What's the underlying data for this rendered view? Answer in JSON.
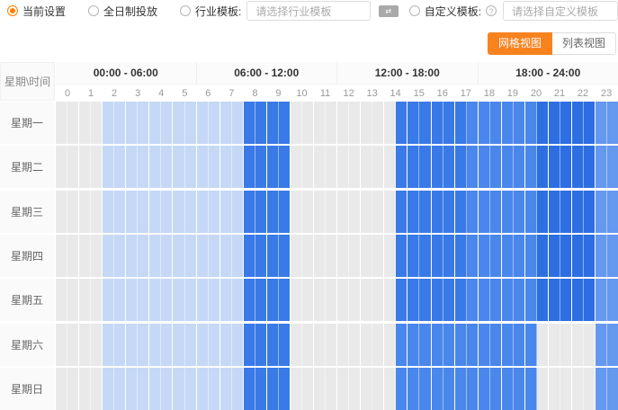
{
  "toolbar": {
    "radio_current": {
      "label": "当前设置",
      "selected": true
    },
    "radio_allday": {
      "label": "全日制投放",
      "selected": false
    },
    "radio_industry": {
      "label": "行业模板:",
      "selected": false
    },
    "industry_select": {
      "placeholder": "请选择行业模板"
    },
    "badge_icon": "template-badge",
    "radio_custom": {
      "label": "自定义模板:",
      "selected": false
    },
    "help_icon": "?",
    "custom_select": {
      "placeholder": "请选择自定义模板"
    },
    "accent_color": "#f7821e",
    "radio_checked_color": "#ff8000"
  },
  "view_toggle": {
    "grid_label": "网格视图",
    "list_label": "列表视图",
    "active": "grid"
  },
  "grid": {
    "corner_label": "星期\\时间",
    "time_groups": [
      "00:00 - 06:00",
      "06:00 - 12:00",
      "12:00 - 18:00",
      "18:00 - 24:00"
    ],
    "hours": [
      0,
      1,
      2,
      3,
      4,
      5,
      6,
      7,
      8,
      9,
      10,
      11,
      12,
      13,
      14,
      15,
      16,
      17,
      18,
      19,
      20,
      21,
      22,
      23
    ],
    "level_colors": {
      "off": "#e9e9e9",
      "light": "#c5d8f6",
      "mid": "#4a87ec",
      "middark": "#3a7ae8",
      "dark": "#2d6fe3",
      "midlight": "#6598ef"
    },
    "days": [
      {
        "label": "星期一",
        "segments": [
          {
            "from": "00:00",
            "to": "02:00",
            "level": "off"
          },
          {
            "from": "02:00",
            "to": "08:00",
            "level": "light"
          },
          {
            "from": "08:00",
            "to": "10:00",
            "level": "middark"
          },
          {
            "from": "10:00",
            "to": "14:30",
            "level": "off"
          },
          {
            "from": "14:30",
            "to": "17:30",
            "level": "middark"
          },
          {
            "from": "17:30",
            "to": "20:30",
            "level": "mid"
          },
          {
            "from": "20:30",
            "to": "23:00",
            "level": "dark"
          },
          {
            "from": "23:00",
            "to": "24:00",
            "level": "midlight"
          }
        ]
      },
      {
        "label": "星期二",
        "segments": [
          {
            "from": "00:00",
            "to": "02:00",
            "level": "off"
          },
          {
            "from": "02:00",
            "to": "08:00",
            "level": "light"
          },
          {
            "from": "08:00",
            "to": "10:00",
            "level": "middark"
          },
          {
            "from": "10:00",
            "to": "14:30",
            "level": "off"
          },
          {
            "from": "14:30",
            "to": "17:30",
            "level": "middark"
          },
          {
            "from": "17:30",
            "to": "20:30",
            "level": "mid"
          },
          {
            "from": "20:30",
            "to": "23:00",
            "level": "dark"
          },
          {
            "from": "23:00",
            "to": "24:00",
            "level": "midlight"
          }
        ]
      },
      {
        "label": "星期三",
        "segments": [
          {
            "from": "00:00",
            "to": "02:00",
            "level": "off"
          },
          {
            "from": "02:00",
            "to": "08:00",
            "level": "light"
          },
          {
            "from": "08:00",
            "to": "10:00",
            "level": "middark"
          },
          {
            "from": "10:00",
            "to": "14:30",
            "level": "off"
          },
          {
            "from": "14:30",
            "to": "17:30",
            "level": "middark"
          },
          {
            "from": "17:30",
            "to": "20:30",
            "level": "mid"
          },
          {
            "from": "20:30",
            "to": "23:00",
            "level": "dark"
          },
          {
            "from": "23:00",
            "to": "24:00",
            "level": "midlight"
          }
        ]
      },
      {
        "label": "星期四",
        "segments": [
          {
            "from": "00:00",
            "to": "02:00",
            "level": "off"
          },
          {
            "from": "02:00",
            "to": "08:00",
            "level": "light"
          },
          {
            "from": "08:00",
            "to": "10:00",
            "level": "middark"
          },
          {
            "from": "10:00",
            "to": "14:30",
            "level": "off"
          },
          {
            "from": "14:30",
            "to": "17:30",
            "level": "middark"
          },
          {
            "from": "17:30",
            "to": "20:30",
            "level": "mid"
          },
          {
            "from": "20:30",
            "to": "23:00",
            "level": "dark"
          },
          {
            "from": "23:00",
            "to": "24:00",
            "level": "midlight"
          }
        ]
      },
      {
        "label": "星期五",
        "segments": [
          {
            "from": "00:00",
            "to": "02:00",
            "level": "off"
          },
          {
            "from": "02:00",
            "to": "08:00",
            "level": "light"
          },
          {
            "from": "08:00",
            "to": "10:00",
            "level": "middark"
          },
          {
            "from": "10:00",
            "to": "14:30",
            "level": "off"
          },
          {
            "from": "14:30",
            "to": "17:30",
            "level": "middark"
          },
          {
            "from": "17:30",
            "to": "20:30",
            "level": "mid"
          },
          {
            "from": "20:30",
            "to": "23:00",
            "level": "dark"
          },
          {
            "from": "23:00",
            "to": "24:00",
            "level": "midlight"
          }
        ]
      },
      {
        "label": "星期六",
        "segments": [
          {
            "from": "00:00",
            "to": "02:00",
            "level": "off"
          },
          {
            "from": "02:00",
            "to": "08:00",
            "level": "light"
          },
          {
            "from": "08:00",
            "to": "10:00",
            "level": "middark"
          },
          {
            "from": "10:00",
            "to": "14:30",
            "level": "off"
          },
          {
            "from": "14:30",
            "to": "20:30",
            "level": "mid"
          },
          {
            "from": "20:30",
            "to": "23:00",
            "level": "off"
          },
          {
            "from": "23:00",
            "to": "24:00",
            "level": "midlight"
          }
        ]
      },
      {
        "label": "星期日",
        "segments": [
          {
            "from": "00:00",
            "to": "02:00",
            "level": "off"
          },
          {
            "from": "02:00",
            "to": "08:00",
            "level": "light"
          },
          {
            "from": "08:00",
            "to": "10:00",
            "level": "middark"
          },
          {
            "from": "10:00",
            "to": "14:30",
            "level": "off"
          },
          {
            "from": "14:30",
            "to": "20:30",
            "level": "mid"
          },
          {
            "from": "20:30",
            "to": "23:00",
            "level": "off"
          },
          {
            "from": "23:00",
            "to": "24:00",
            "level": "midlight"
          }
        ]
      }
    ]
  }
}
